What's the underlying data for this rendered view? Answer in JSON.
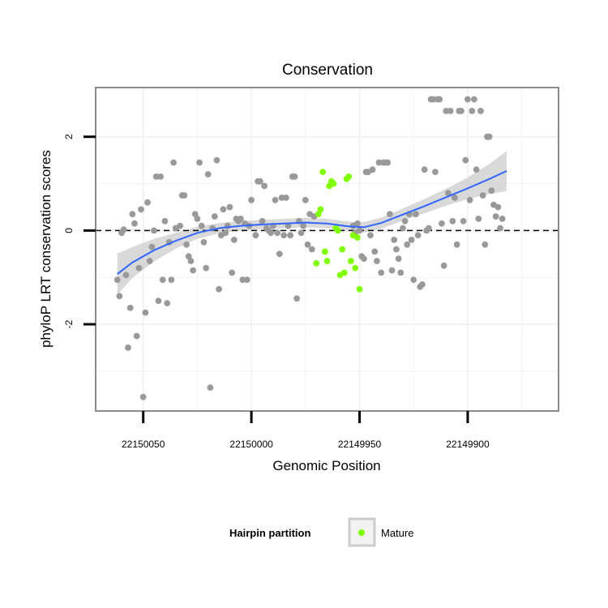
{
  "chart_data": {
    "type": "scatter",
    "title": "Conservation",
    "xlabel": "Genomic Position",
    "ylabel": "phyloP LRT conservation scores",
    "x_reversed": true,
    "xlim": [
      22150072,
      22149858
    ],
    "ylim": [
      -3.85,
      3.05
    ],
    "x_ticks": [
      22150050,
      22150000,
      22149950,
      22149900
    ],
    "y_ticks": [
      -2,
      0,
      2
    ],
    "reference_line_y": 0,
    "grid": true,
    "legend": {
      "title": "Hairpin partition",
      "placement": "bottom",
      "entries": [
        "Mature"
      ]
    },
    "colors": {
      "other": "#999999",
      "mature": "#7fff00",
      "smooth": "#3366ff",
      "band": "#cccccc",
      "panel_border": "#7f7f7f",
      "grid": "#f2f2f2"
    },
    "series": [
      {
        "name": "",
        "points": [
          [
            22150062,
            -1.05
          ],
          [
            22150061,
            -1.4
          ],
          [
            22150060,
            -0.05
          ],
          [
            22150059,
            0.02
          ],
          [
            22150058,
            -0.95
          ],
          [
            22150057,
            -2.5
          ],
          [
            22150056,
            -1.65
          ],
          [
            22150055,
            0.35
          ],
          [
            22150054,
            0.15
          ],
          [
            22150053,
            -2.25
          ],
          [
            22150052,
            -0.8
          ],
          [
            22150051,
            0.45
          ],
          [
            22150050,
            -3.55
          ],
          [
            22150049,
            -1.75
          ],
          [
            22150048,
            0.6
          ],
          [
            22150047,
            -0.65
          ],
          [
            22150046,
            -0.35
          ],
          [
            22150045,
            0.0
          ],
          [
            22150044,
            1.15
          ],
          [
            22150043,
            -1.5
          ],
          [
            22150042,
            1.15
          ],
          [
            22150041,
            -1.05
          ],
          [
            22150040,
            0.2
          ],
          [
            22150039,
            -1.55
          ],
          [
            22150038,
            -0.25
          ],
          [
            22150037,
            -1.05
          ],
          [
            22150036,
            1.45
          ],
          [
            22150035,
            0.05
          ],
          [
            22150033,
            0.1
          ],
          [
            22150032,
            0.75
          ],
          [
            22150031,
            0.75
          ],
          [
            22150030,
            -0.3
          ],
          [
            22150029,
            -0.55
          ],
          [
            22150028,
            -0.65
          ],
          [
            22150027,
            -0.85
          ],
          [
            22150026,
            0.35
          ],
          [
            22150025,
            0.25
          ],
          [
            22150024,
            1.45
          ],
          [
            22150023,
            0.1
          ],
          [
            22150022,
            -0.25
          ],
          [
            22150021,
            -0.8
          ],
          [
            22150020,
            1.2
          ],
          [
            22150019,
            -3.35
          ],
          [
            22150018,
            0.05
          ],
          [
            22150017,
            0.3
          ],
          [
            22150016,
            1.5
          ],
          [
            22150015,
            -1.25
          ],
          [
            22150014,
            -0.1
          ],
          [
            22150013,
            0.45
          ],
          [
            22150012,
            -0.05
          ],
          [
            22150011,
            0.1
          ],
          [
            22150010,
            0.5
          ],
          [
            22150009,
            -0.9
          ],
          [
            22150008,
            -0.2
          ],
          [
            22150007,
            0.25
          ],
          [
            22150006,
            0.2
          ],
          [
            22150005,
            0.25
          ],
          [
            22150004,
            -1.05
          ],
          [
            22150003,
            0.15
          ],
          [
            22150002,
            -1.05
          ],
          [
            22150001,
            0.1
          ],
          [
            22150000,
            0.65
          ],
          [
            22149998,
            -0.1
          ],
          [
            22149997,
            1.05
          ],
          [
            22149996,
            1.05
          ],
          [
            22149995,
            0.2
          ],
          [
            22149994,
            0.95
          ],
          [
            22149993,
            0.05
          ],
          [
            22149992,
            0.0
          ],
          [
            22149991,
            -0.05
          ],
          [
            22149990,
            0.1
          ],
          [
            22149989,
            0.65
          ],
          [
            22149988,
            -0.05
          ],
          [
            22149987,
            -0.5
          ],
          [
            22149986,
            0.7
          ],
          [
            22149985,
            -0.1
          ],
          [
            22149984,
            0.7
          ],
          [
            22149983,
            0.1
          ],
          [
            22149982,
            -0.1
          ],
          [
            22149981,
            1.15
          ],
          [
            22149980,
            1.15
          ],
          [
            22149979,
            -1.45
          ],
          [
            22149978,
            0.2
          ],
          [
            22149977,
            -0.05
          ],
          [
            22149976,
            0.1
          ],
          [
            22149975,
            0.65
          ],
          [
            22149974,
            -0.3
          ],
          [
            22149973,
            0.35
          ],
          [
            22149972,
            -0.4
          ],
          [
            22149971,
            0.3
          ],
          [
            22149953,
            0.1
          ],
          [
            22149952,
            -0.05
          ],
          [
            22149951,
            0.15
          ],
          [
            22149950,
            0.0
          ],
          [
            22149949,
            -0.55
          ],
          [
            22149948,
            -0.6
          ],
          [
            22149947,
            1.25
          ],
          [
            22149946,
            1.25
          ],
          [
            22149945,
            -0.1
          ],
          [
            22149944,
            1.3
          ],
          [
            22149943,
            -0.45
          ],
          [
            22149942,
            -0.65
          ],
          [
            22149941,
            1.45
          ],
          [
            22149940,
            -0.9
          ],
          [
            22149939,
            1.45
          ],
          [
            22149938,
            1.45
          ],
          [
            22149937,
            1.45
          ],
          [
            22149936,
            0.35
          ],
          [
            22149935,
            -0.85
          ],
          [
            22149934,
            -0.2
          ],
          [
            22149933,
            -0.4
          ],
          [
            22149932,
            -0.6
          ],
          [
            22149931,
            -0.9
          ],
          [
            22149930,
            0.05
          ],
          [
            22149929,
            0.2
          ],
          [
            22149928,
            -0.3
          ],
          [
            22149927,
            0.35
          ],
          [
            22149926,
            -0.2
          ],
          [
            22149925,
            -1.05
          ],
          [
            22149924,
            0.35
          ],
          [
            22149923,
            -0.1
          ],
          [
            22149922,
            -1.2
          ],
          [
            22149921,
            -1.15
          ],
          [
            22149920,
            1.3
          ],
          [
            22149919,
            0.0
          ],
          [
            22149918,
            0.05
          ],
          [
            22149917,
            2.8
          ],
          [
            22149916,
            2.8
          ],
          [
            22149915,
            1.25
          ],
          [
            22149914,
            2.8
          ],
          [
            22149913,
            2.8
          ],
          [
            22149912,
            0.15
          ],
          [
            22149911,
            -0.75
          ],
          [
            22149910,
            2.55
          ],
          [
            22149909,
            0.8
          ],
          [
            22149908,
            2.55
          ],
          [
            22149907,
            0.2
          ],
          [
            22149906,
            0.7
          ],
          [
            22149905,
            -0.3
          ],
          [
            22149904,
            2.55
          ],
          [
            22149903,
            2.55
          ],
          [
            22149902,
            0.2
          ],
          [
            22149901,
            1.5
          ],
          [
            22149900,
            2.8
          ],
          [
            22149899,
            0.65
          ],
          [
            22149898,
            2.55
          ],
          [
            22149897,
            2.8
          ],
          [
            22149896,
            1.3
          ],
          [
            22149895,
            0.25
          ],
          [
            22149894,
            2.55
          ],
          [
            22149893,
            0.75
          ],
          [
            22149892,
            -0.3
          ],
          [
            22149891,
            2.0
          ],
          [
            22149890,
            2.0
          ],
          [
            22149889,
            0.85
          ],
          [
            22149888,
            0.55
          ],
          [
            22149887,
            0.3
          ],
          [
            22149886,
            0.5
          ],
          [
            22149885,
            0.05
          ],
          [
            22149884,
            0.25
          ]
        ]
      },
      {
        "name": "Mature",
        "points": [
          [
            22149970,
            -0.7
          ],
          [
            22149969,
            0.35
          ],
          [
            22149968,
            0.45
          ],
          [
            22149967,
            1.25
          ],
          [
            22149966,
            -0.45
          ],
          [
            22149965,
            -0.65
          ],
          [
            22149964,
            0.95
          ],
          [
            22149963,
            1.05
          ],
          [
            22149962,
            1.0
          ],
          [
            22149961,
            0.05
          ],
          [
            22149960,
            0.0
          ],
          [
            22149959,
            -0.95
          ],
          [
            22149958,
            -0.4
          ],
          [
            22149957,
            -0.9
          ],
          [
            22149956,
            1.1
          ],
          [
            22149955,
            1.15
          ],
          [
            22149954,
            -0.65
          ],
          [
            22149953,
            -0.1
          ],
          [
            22149952,
            -0.8
          ],
          [
            22149951,
            -0.15
          ],
          [
            22149950,
            -1.25
          ]
        ]
      }
    ],
    "smooth": {
      "x": [
        22150062,
        22150055,
        22150045,
        22150035,
        22150025,
        22150015,
        22150005,
        22149995,
        22149985,
        22149975,
        22149965,
        22149955,
        22149948,
        22149940,
        22149930,
        22149920,
        22149910,
        22149900,
        22149890,
        22149882
      ],
      "y": [
        -0.93,
        -0.68,
        -0.42,
        -0.22,
        -0.05,
        0.05,
        0.1,
        0.13,
        0.15,
        0.17,
        0.15,
        0.09,
        0.07,
        0.16,
        0.34,
        0.52,
        0.71,
        0.9,
        1.1,
        1.27
      ],
      "se": [
        0.44,
        0.33,
        0.24,
        0.17,
        0.13,
        0.11,
        0.1,
        0.1,
        0.1,
        0.1,
        0.1,
        0.1,
        0.11,
        0.12,
        0.13,
        0.15,
        0.18,
        0.23,
        0.32,
        0.43
      ]
    }
  }
}
